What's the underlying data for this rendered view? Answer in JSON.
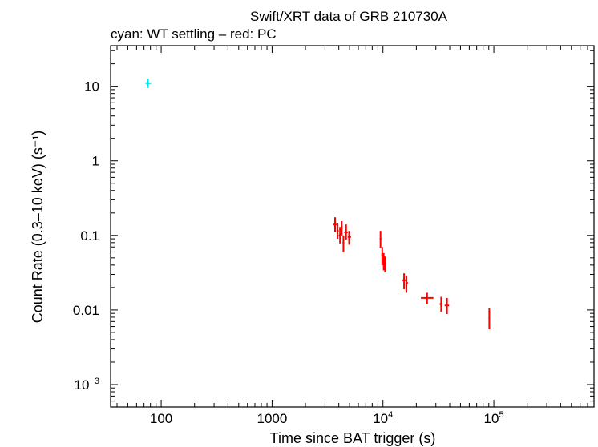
{
  "chart_data": {
    "type": "scatter",
    "title": "Swift/XRT data of GRB 210730A",
    "subtitle": "cyan: WT settling – red: PC",
    "xlabel": "Time since BAT trigger (s)",
    "ylabel": "Count Rate (0.3–10 keV) (s⁻¹)",
    "xscale": "log",
    "yscale": "log",
    "xlim": [
      35,
      800000
    ],
    "ylim": [
      0.0005,
      35
    ],
    "x_ticks": [
      {
        "value": 100,
        "label": "100"
      },
      {
        "value": 1000,
        "label": "1000"
      },
      {
        "value": 10000,
        "base": "10",
        "exp": "4"
      },
      {
        "value": 100000,
        "base": "10",
        "exp": "5"
      }
    ],
    "y_ticks": [
      {
        "value": 10,
        "label": "10"
      },
      {
        "value": 1,
        "label": "1"
      },
      {
        "value": 0.1,
        "label": "0.1"
      },
      {
        "value": 0.01,
        "label": "0.01"
      },
      {
        "value": 0.001,
        "base": "10",
        "exp": "−3"
      }
    ],
    "series": [
      {
        "name": "WT settling",
        "color": "#00e5ee",
        "points": [
          {
            "x": 76,
            "xlo": 72,
            "xhi": 81,
            "y": 11.0,
            "ylo": 9.5,
            "yhi": 12.6
          }
        ]
      },
      {
        "name": "PC",
        "color": "#ff0000",
        "points": [
          {
            "x": 3700,
            "xlo": 3580,
            "xhi": 3820,
            "y": 0.14,
            "ylo": 0.11,
            "yhi": 0.175
          },
          {
            "x": 3900,
            "xlo": 3820,
            "xhi": 3990,
            "y": 0.115,
            "ylo": 0.09,
            "yhi": 0.145
          },
          {
            "x": 4100,
            "xlo": 3990,
            "xhi": 4200,
            "y": 0.1,
            "ylo": 0.078,
            "yhi": 0.13
          },
          {
            "x": 4250,
            "xlo": 4200,
            "xhi": 4320,
            "y": 0.125,
            "ylo": 0.1,
            "yhi": 0.155
          },
          {
            "x": 4400,
            "xlo": 4320,
            "xhi": 4480,
            "y": 0.08,
            "ylo": 0.06,
            "yhi": 0.1
          },
          {
            "x": 4650,
            "xlo": 4480,
            "xhi": 4820,
            "y": 0.11,
            "ylo": 0.088,
            "yhi": 0.14
          },
          {
            "x": 4950,
            "xlo": 4820,
            "xhi": 5150,
            "y": 0.095,
            "ylo": 0.075,
            "yhi": 0.115
          },
          {
            "x": 9500,
            "xlo": 9350,
            "xhi": 9680,
            "y": 0.09,
            "ylo": 0.068,
            "yhi": 0.115
          },
          {
            "x": 9850,
            "xlo": 9680,
            "xhi": 10050,
            "y": 0.055,
            "ylo": 0.04,
            "yhi": 0.07
          },
          {
            "x": 10150,
            "xlo": 10050,
            "xhi": 10300,
            "y": 0.045,
            "ylo": 0.034,
            "yhi": 0.058
          },
          {
            "x": 10450,
            "xlo": 10300,
            "xhi": 10650,
            "y": 0.042,
            "ylo": 0.032,
            "yhi": 0.052
          },
          {
            "x": 15500,
            "xlo": 15000,
            "xhi": 16000,
            "y": 0.025,
            "ylo": 0.019,
            "yhi": 0.031
          },
          {
            "x": 16300,
            "xlo": 16000,
            "xhi": 16800,
            "y": 0.023,
            "ylo": 0.017,
            "yhi": 0.029
          },
          {
            "x": 25000,
            "xlo": 22000,
            "xhi": 28500,
            "y": 0.0145,
            "ylo": 0.012,
            "yhi": 0.017
          },
          {
            "x": 33500,
            "xlo": 32500,
            "xhi": 34500,
            "y": 0.012,
            "ylo": 0.0095,
            "yhi": 0.015
          },
          {
            "x": 37800,
            "xlo": 36000,
            "xhi": 39500,
            "y": 0.0115,
            "ylo": 0.0088,
            "yhi": 0.0145
          },
          {
            "x": 91000,
            "xlo": 89500,
            "xhi": 92500,
            "y": 0.0078,
            "ylo": 0.0055,
            "yhi": 0.0105
          }
        ]
      }
    ]
  }
}
